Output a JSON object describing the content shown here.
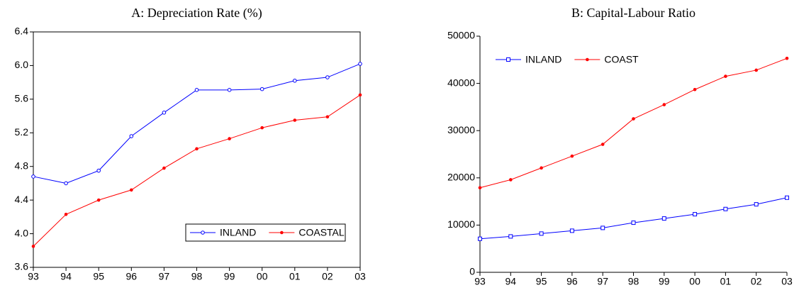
{
  "chart_data": [
    {
      "type": "line",
      "title": "A: Depreciation Rate (%)",
      "categories": [
        "93",
        "94",
        "95",
        "96",
        "97",
        "98",
        "99",
        "00",
        "01",
        "02",
        "03"
      ],
      "series": [
        {
          "name": "INLAND",
          "color": "#0000ff",
          "marker": "circle",
          "values": [
            4.68,
            4.6,
            4.75,
            5.16,
            5.44,
            5.71,
            5.71,
            5.72,
            5.82,
            5.86,
            6.02
          ]
        },
        {
          "name": "COASTAL",
          "color": "#ff0000",
          "marker": "dot",
          "values": [
            3.85,
            4.23,
            4.4,
            4.52,
            4.78,
            5.01,
            5.13,
            5.26,
            5.35,
            5.39,
            5.65
          ]
        }
      ],
      "ylim": [
        3.6,
        6.4
      ],
      "yticks": [
        3.6,
        {
          "value": 4,
          "label": "4.0"
        },
        4.4,
        4.8,
        5.2,
        5.6,
        {
          "value": 6,
          "label": "6.0"
        },
        6.4
      ],
      "frame": true,
      "legend": "lower right"
    },
    {
      "type": "line",
      "title": "B: Capital-Labour Ratio",
      "categories": [
        "93",
        "94",
        "95",
        "96",
        "97",
        "98",
        "99",
        "00",
        "01",
        "02",
        "03"
      ],
      "series": [
        {
          "name": "INLAND",
          "color": "#0000ff",
          "marker": "square",
          "values": [
            7100,
            7600,
            8200,
            8800,
            9400,
            10500,
            11400,
            12300,
            13400,
            14400,
            15800
          ]
        },
        {
          "name": "COAST",
          "color": "#ff0000",
          "marker": "dot",
          "values": [
            17900,
            19600,
            22100,
            24600,
            27100,
            32500,
            35500,
            38700,
            41500,
            42800,
            45300
          ]
        }
      ],
      "ylim": [
        0,
        50000
      ],
      "yticks": [
        0,
        10000,
        20000,
        30000,
        40000,
        50000
      ],
      "frame": false,
      "legend": "upper left"
    }
  ]
}
